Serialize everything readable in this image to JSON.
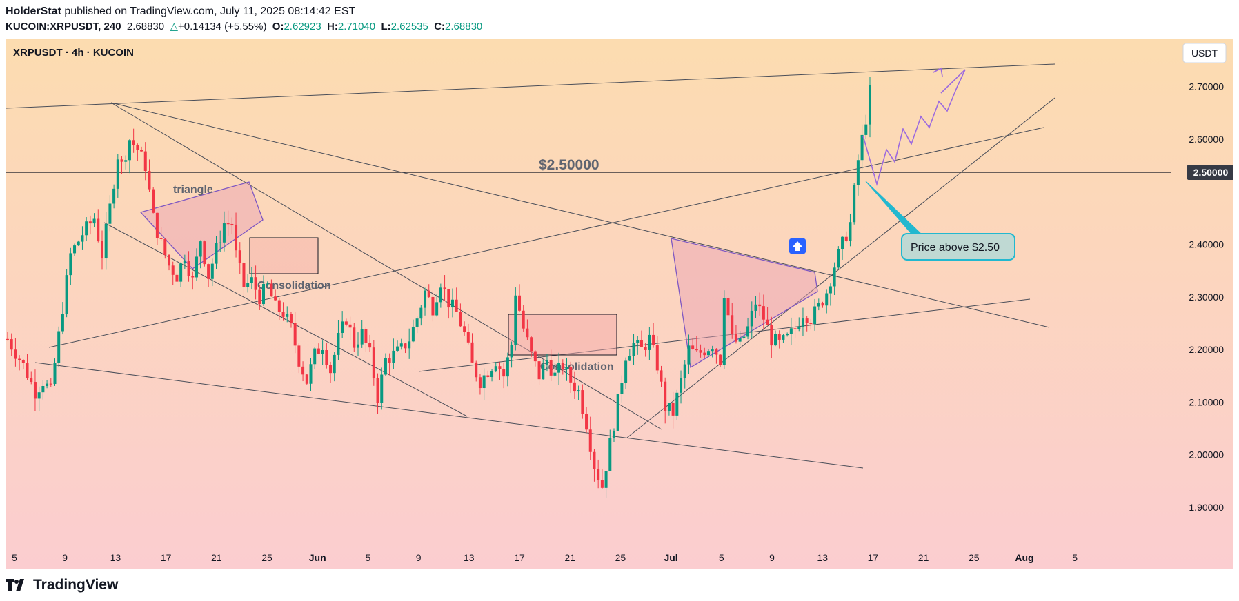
{
  "publish": {
    "author": "HolderStat",
    "text": " published on TradingView.com, July 11, 2025 08:14:42 EST"
  },
  "ohlc": {
    "symbol": "KUCOIN:XRPUSDT, 240",
    "price": "2.68830",
    "change": "+0.14134 (+5.55%)",
    "o_label": "O:",
    "o": "2.62923",
    "h_label": "H:",
    "h": "2.71040",
    "l_label": "L:",
    "l": "2.62535",
    "c_label": "C:",
    "c": "2.68830"
  },
  "footer": {
    "brand": "TradingView"
  },
  "colors": {
    "up": "#089981",
    "down": "#f23645",
    "pattern": "#7e57c2",
    "callout": "#22b8cf"
  },
  "chart_data": {
    "type": "candlestick",
    "title": "XRPUSDT · 4h · KUCOIN",
    "currency": "USDT",
    "ylim": [
      1.82,
      2.79
    ],
    "y_ticks": [
      "2.70000",
      "2.60000",
      "2.50000",
      "2.40000",
      "2.30000",
      "2.20000",
      "2.10000",
      "2.00000",
      "1.90000"
    ],
    "x_ticks": [
      "5",
      "9",
      "13",
      "17",
      "21",
      "25",
      "Jun",
      "5",
      "9",
      "13",
      "17",
      "21",
      "25",
      "Jul",
      "5",
      "9",
      "13",
      "17",
      "21",
      "25",
      "Aug",
      "5"
    ],
    "level": {
      "value": 2.5,
      "label": "$2.50000",
      "axis_label": "2.50000"
    },
    "last_price": 2.6883,
    "annotations": {
      "triangle_1": "triangle",
      "consolidation_1": "Consolidation",
      "consolidation_2": "Consolidation",
      "callout": "Price above $2.50",
      "arrow": "up-arrow-icon"
    },
    "price_path": [
      [
        0,
        2.22
      ],
      [
        4,
        2.17
      ],
      [
        7,
        2.12
      ],
      [
        9,
        2.14
      ],
      [
        11,
        2.12
      ],
      [
        14,
        2.28
      ],
      [
        16,
        2.38
      ],
      [
        19,
        2.42
      ],
      [
        22,
        2.45
      ],
      [
        24,
        2.38
      ],
      [
        26,
        2.47
      ],
      [
        28,
        2.57
      ],
      [
        29,
        2.55
      ],
      [
        31,
        2.6
      ],
      [
        33,
        2.58
      ],
      [
        35,
        2.55
      ],
      [
        37,
        2.45
      ],
      [
        39,
        2.4
      ],
      [
        41,
        2.36
      ],
      [
        43,
        2.34
      ],
      [
        45,
        2.38
      ],
      [
        47,
        2.33
      ],
      [
        49,
        2.41
      ],
      [
        51,
        2.34
      ],
      [
        53,
        2.39
      ],
      [
        55,
        2.44
      ],
      [
        57,
        2.44
      ],
      [
        58,
        2.38
      ],
      [
        60,
        2.32
      ],
      [
        62,
        2.33
      ],
      [
        64,
        2.3
      ],
      [
        66,
        2.32
      ],
      [
        68,
        2.28
      ],
      [
        70,
        2.27
      ],
      [
        72,
        2.24
      ],
      [
        74,
        2.18
      ],
      [
        76,
        2.14
      ],
      [
        78,
        2.19
      ],
      [
        80,
        2.21
      ],
      [
        82,
        2.16
      ],
      [
        84,
        2.22
      ],
      [
        86,
        2.26
      ],
      [
        88,
        2.21
      ],
      [
        90,
        2.23
      ],
      [
        92,
        2.19
      ],
      [
        94,
        2.11
      ],
      [
        96,
        2.18
      ],
      [
        98,
        2.19
      ],
      [
        100,
        2.2
      ],
      [
        102,
        2.22
      ],
      [
        104,
        2.26
      ],
      [
        106,
        2.31
      ],
      [
        108,
        2.28
      ],
      [
        110,
        2.33
      ],
      [
        112,
        2.29
      ],
      [
        114,
        2.27
      ],
      [
        116,
        2.23
      ],
      [
        118,
        2.17
      ],
      [
        120,
        2.14
      ],
      [
        122,
        2.16
      ],
      [
        124,
        2.18
      ],
      [
        126,
        2.15
      ],
      [
        128,
        2.21
      ],
      [
        129,
        2.31
      ],
      [
        131,
        2.24
      ],
      [
        133,
        2.19
      ],
      [
        135,
        2.15
      ],
      [
        137,
        2.18
      ],
      [
        139,
        2.15
      ],
      [
        141,
        2.17
      ],
      [
        143,
        2.14
      ],
      [
        145,
        2.12
      ],
      [
        147,
        2.06
      ],
      [
        149,
        1.98
      ],
      [
        151,
        1.94
      ],
      [
        153,
        2.02
      ],
      [
        155,
        2.1
      ],
      [
        157,
        2.19
      ],
      [
        159,
        2.21
      ],
      [
        161,
        2.2
      ],
      [
        163,
        2.22
      ],
      [
        165,
        2.17
      ],
      [
        167,
        2.09
      ],
      [
        169,
        2.08
      ],
      [
        171,
        2.14
      ],
      [
        173,
        2.2
      ],
      [
        175,
        2.19
      ],
      [
        177,
        2.2
      ],
      [
        179,
        2.21
      ],
      [
        181,
        2.18
      ],
      [
        182,
        2.31
      ],
      [
        184,
        2.22
      ],
      [
        186,
        2.21
      ],
      [
        188,
        2.24
      ],
      [
        190,
        2.29
      ],
      [
        192,
        2.26
      ],
      [
        194,
        2.22
      ],
      [
        196,
        2.21
      ],
      [
        198,
        2.22
      ],
      [
        200,
        2.24
      ],
      [
        202,
        2.27
      ],
      [
        204,
        2.26
      ],
      [
        206,
        2.28
      ],
      [
        208,
        2.31
      ],
      [
        210,
        2.36
      ],
      [
        212,
        2.4
      ],
      [
        214,
        2.44
      ],
      [
        215,
        2.5
      ],
      [
        216,
        2.56
      ],
      [
        217,
        2.6
      ],
      [
        218,
        2.64
      ],
      [
        219,
        2.69
      ]
    ]
  }
}
